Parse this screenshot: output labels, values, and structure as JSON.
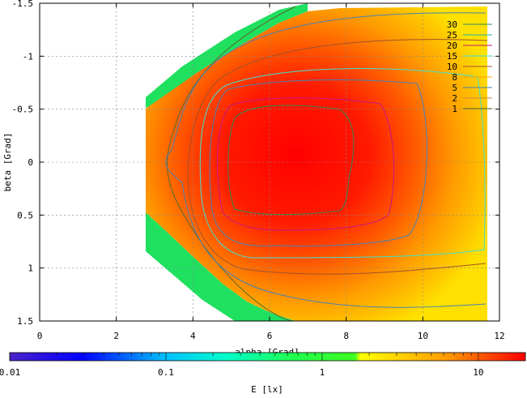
{
  "chart_data": {
    "type": "heatmap",
    "title": "",
    "xlabel": "alpha [Grad]",
    "ylabel": "beta [Grad]",
    "colorbar_label": "E [lx]",
    "xlim": [
      0,
      12
    ],
    "ylim": [
      -1.5,
      1.5
    ],
    "y_inverted": true,
    "x_ticks": [
      0,
      2,
      4,
      6,
      8,
      10,
      12
    ],
    "x_tick_labels": [
      "0",
      "2",
      "4",
      "6",
      "8",
      "10",
      "12"
    ],
    "y_ticks": [
      -1.5,
      -1,
      -0.5,
      0,
      0.5,
      1,
      1.5
    ],
    "y_tick_labels": [
      "-1.5",
      "-1",
      "-0.5",
      "0",
      "0.5",
      "1",
      "1.5"
    ],
    "grid": true,
    "colorbar": {
      "scale": "log",
      "range": [
        0.01,
        20
      ],
      "ticks": [
        0.01,
        0.1,
        1,
        10
      ],
      "tick_labels": [
        "0.01",
        "0.1",
        "1",
        "10"
      ]
    },
    "legend_placement": "top-right",
    "contours": [
      {
        "name": "30",
        "color": "#2e8b57",
        "level": 30
      },
      {
        "name": "25",
        "color": "#20b2aa",
        "level": 25
      },
      {
        "name": "20",
        "color": "#c71585",
        "level": 20
      },
      {
        "name": "15",
        "color": "#40e0d0",
        "level": 15
      },
      {
        "name": "10",
        "color": "#a0522d",
        "level": 10
      },
      {
        "name": "8",
        "color": "#ffa500",
        "level": 8
      },
      {
        "name": "5",
        "color": "#4682b4",
        "level": 5
      },
      {
        "name": "2",
        "color": "#cd853f",
        "level": 2
      },
      {
        "name": "1",
        "color": "#556b2f",
        "level": 1
      }
    ]
  }
}
